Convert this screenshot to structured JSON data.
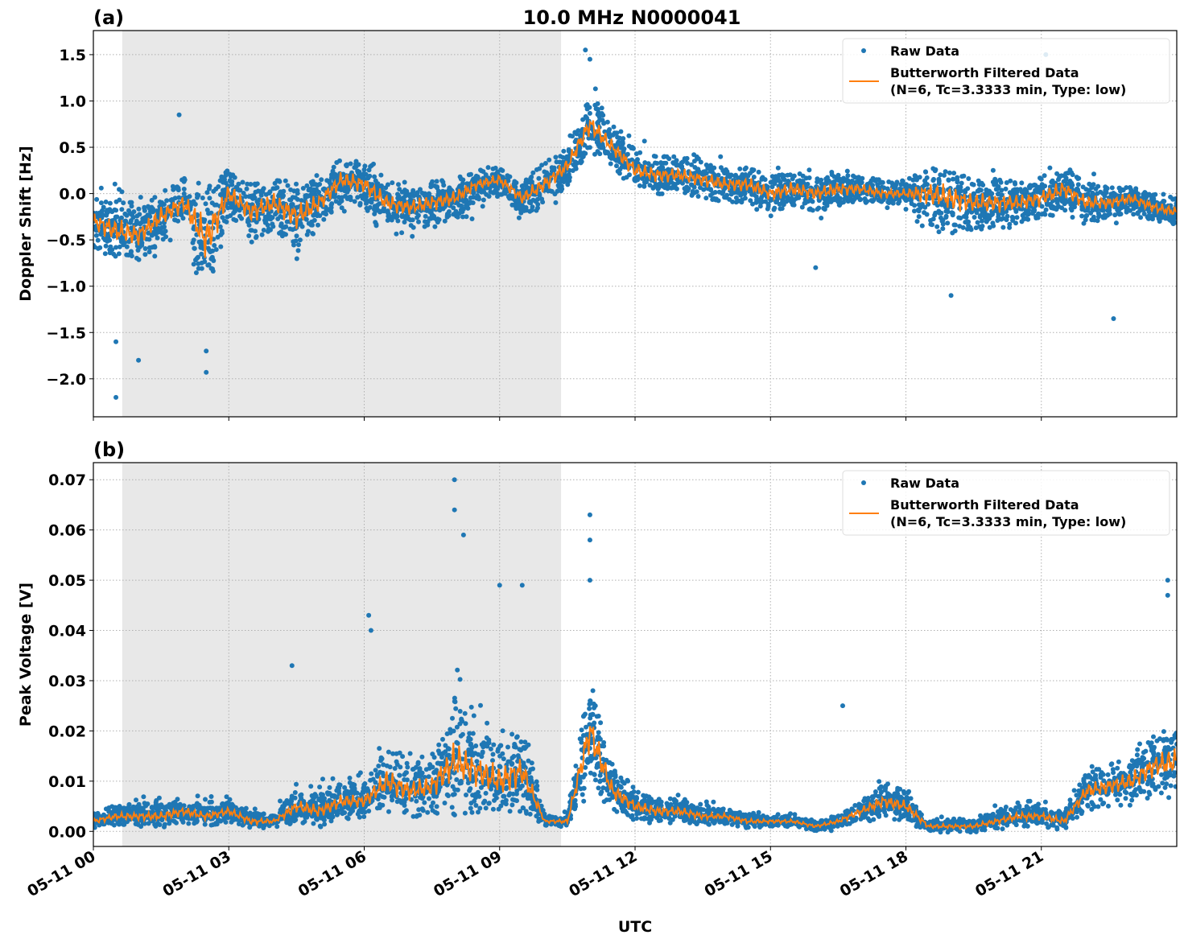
{
  "title": "10.0 MHz N0000041",
  "xlabel": "UTC",
  "colors": {
    "raw": "#1f77b4",
    "filtered": "#ff7f0e",
    "shade": "#e8e8e8",
    "grid": "#b0b0b0"
  },
  "chart_data": [
    {
      "panel_label": "(a)",
      "type": "scatter+line",
      "ylabel": "Doppler Shift [Hz]",
      "xlim_hours_utc": [
        0,
        24
      ],
      "x_tick_labels": [
        "05-11 00",
        "05-11 03",
        "05-11 06",
        "05-11 09",
        "05-11 12",
        "05-11 15",
        "05-11 18",
        "05-11 21"
      ],
      "x_tick_hours": [
        0,
        3,
        6,
        9,
        12,
        15,
        18,
        21
      ],
      "ylim": [
        -2.41,
        1.76
      ],
      "y_ticks": [
        -2.0,
        -1.5,
        -1.0,
        -0.5,
        0.0,
        0.5,
        1.0,
        1.5
      ],
      "y_tick_labels": [
        "−2.0",
        "−1.5",
        "−1.0",
        "−0.5",
        "0.0",
        "0.5",
        "1.0",
        "1.5"
      ],
      "grid": true,
      "shaded_interval_hours": [
        0.64,
        10.36
      ],
      "legend_position": "top-right",
      "legend": [
        "Raw Data",
        "Butterworth Filtered Data",
        "(N=6, Tc=3.3333 min, Type: low)"
      ],
      "x_hours": [
        0,
        0.5,
        1,
        1.5,
        2,
        2.5,
        3,
        3.5,
        4,
        4.5,
        5,
        5.5,
        6,
        6.5,
        7,
        7.5,
        8,
        8.5,
        9,
        9.5,
        10,
        10.5,
        11,
        11.5,
        12,
        12.5,
        13,
        13.5,
        14,
        14.5,
        15,
        15.5,
        16,
        16.5,
        17,
        17.5,
        18,
        18.5,
        19,
        19.5,
        20,
        20.5,
        21,
        21.5,
        22,
        22.5,
        23,
        23.5,
        24
      ],
      "filtered": [
        -0.3,
        -0.4,
        -0.45,
        -0.25,
        -0.1,
        -0.5,
        0.0,
        -0.2,
        -0.1,
        -0.25,
        -0.1,
        0.15,
        0.1,
        -0.1,
        -0.15,
        -0.1,
        -0.05,
        0.1,
        0.15,
        -0.05,
        0.1,
        0.3,
        0.75,
        0.5,
        0.25,
        0.2,
        0.2,
        0.15,
        0.1,
        0.1,
        0.0,
        0.05,
        0.0,
        0.05,
        0.05,
        0.0,
        0.0,
        0.0,
        -0.05,
        -0.1,
        -0.1,
        -0.1,
        -0.05,
        0.05,
        -0.1,
        -0.1,
        -0.05,
        -0.15,
        -0.2
      ],
      "raw_low": [
        -0.7,
        -0.8,
        -0.9,
        -0.7,
        -0.6,
        -1.6,
        -0.5,
        -0.8,
        -0.7,
        -0.9,
        -0.6,
        -0.3,
        -0.3,
        -0.6,
        -0.6,
        -0.5,
        -0.5,
        -0.3,
        -0.2,
        -0.4,
        -0.3,
        -0.1,
        0.3,
        0.2,
        -0.05,
        -0.1,
        -0.1,
        -0.2,
        -0.2,
        -0.3,
        -0.3,
        -0.3,
        -0.35,
        -0.3,
        -0.2,
        -0.2,
        -0.25,
        -0.6,
        -0.7,
        -0.6,
        -0.6,
        -0.5,
        -0.5,
        -0.4,
        -0.4,
        -0.4,
        -0.4,
        -0.45,
        -0.5
      ],
      "raw_high": [
        0.2,
        0.3,
        0.1,
        0.2,
        0.3,
        0.5,
        0.4,
        0.2,
        0.25,
        0.3,
        0.3,
        0.5,
        0.55,
        0.2,
        0.15,
        0.25,
        0.2,
        0.25,
        0.3,
        0.2,
        0.5,
        0.6,
        1.3,
        0.9,
        0.7,
        0.6,
        0.55,
        0.5,
        0.45,
        0.4,
        0.35,
        0.4,
        0.3,
        0.35,
        0.3,
        0.25,
        0.2,
        0.5,
        0.55,
        0.3,
        0.3,
        0.25,
        0.3,
        0.4,
        0.3,
        0.2,
        0.1,
        0.05,
        0.0
      ],
      "raw_outliers": [
        [
          0.5,
          -2.2
        ],
        [
          0.5,
          -1.6
        ],
        [
          1.0,
          -1.8
        ],
        [
          2.5,
          -1.93
        ],
        [
          2.5,
          -1.7
        ],
        [
          1.9,
          0.85
        ],
        [
          10.9,
          1.55
        ],
        [
          11.0,
          1.45
        ],
        [
          21.1,
          1.5
        ],
        [
          22.6,
          -1.35
        ],
        [
          19.0,
          -1.1
        ],
        [
          16.0,
          -0.8
        ]
      ]
    },
    {
      "panel_label": "(b)",
      "type": "scatter+line",
      "ylabel": "Peak Voltage [V]",
      "xlim_hours_utc": [
        0,
        24
      ],
      "x_tick_labels": [
        "05-11 00",
        "05-11 03",
        "05-11 06",
        "05-11 09",
        "05-11 12",
        "05-11 15",
        "05-11 18",
        "05-11 21"
      ],
      "x_tick_hours": [
        0,
        3,
        6,
        9,
        12,
        15,
        18,
        21
      ],
      "ylim": [
        -0.003,
        0.0734
      ],
      "y_ticks": [
        0.0,
        0.01,
        0.02,
        0.03,
        0.04,
        0.05,
        0.06,
        0.07
      ],
      "y_tick_labels": [
        "0.00",
        "0.01",
        "0.02",
        "0.03",
        "0.04",
        "0.05",
        "0.06",
        "0.07"
      ],
      "grid": true,
      "shaded_interval_hours": [
        0.64,
        10.36
      ],
      "legend_position": "top-right",
      "legend": [
        "Raw Data",
        "Butterworth Filtered Data",
        "(N=6, Tc=3.3333 min, Type: low)"
      ],
      "x_hours": [
        0,
        0.5,
        1,
        1.5,
        2,
        2.5,
        3,
        3.5,
        4,
        4.5,
        5,
        5.5,
        6,
        6.5,
        7,
        7.5,
        8,
        8.5,
        9,
        9.5,
        10,
        10.5,
        11,
        11.5,
        12,
        12.5,
        13,
        13.5,
        14,
        14.5,
        15,
        15.5,
        16,
        16.5,
        17,
        17.5,
        18,
        18.5,
        19,
        19.5,
        20,
        20.5,
        21,
        21.5,
        22,
        22.5,
        23,
        23.5,
        24
      ],
      "filtered": [
        0.002,
        0.003,
        0.003,
        0.003,
        0.004,
        0.003,
        0.004,
        0.002,
        0.002,
        0.005,
        0.004,
        0.006,
        0.006,
        0.01,
        0.008,
        0.009,
        0.014,
        0.012,
        0.01,
        0.012,
        0.002,
        0.002,
        0.02,
        0.008,
        0.005,
        0.004,
        0.004,
        0.003,
        0.003,
        0.002,
        0.002,
        0.002,
        0.001,
        0.002,
        0.004,
        0.006,
        0.005,
        0.001,
        0.001,
        0.001,
        0.002,
        0.003,
        0.003,
        0.002,
        0.008,
        0.009,
        0.01,
        0.013,
        0.014
      ],
      "raw_low": [
        0.0005,
        0.001,
        0.001,
        0.001,
        0.001,
        0.001,
        0.001,
        0.001,
        0.001,
        0.001,
        0.001,
        0.002,
        0.002,
        0.003,
        0.002,
        0.003,
        0.004,
        0.003,
        0.003,
        0.003,
        0.001,
        0.001,
        0.005,
        0.003,
        0.002,
        0.001,
        0.001,
        0.001,
        0.001,
        0.0005,
        0.0005,
        0.0005,
        0.0,
        0.0,
        0.001,
        0.001,
        0.001,
        0.0,
        0.0,
        0.0,
        0.0005,
        0.001,
        0.001,
        0.0,
        0.003,
        0.004,
        0.004,
        0.005,
        0.005
      ],
      "raw_high": [
        0.005,
        0.007,
        0.008,
        0.009,
        0.009,
        0.008,
        0.008,
        0.007,
        0.005,
        0.012,
        0.012,
        0.014,
        0.013,
        0.025,
        0.02,
        0.022,
        0.04,
        0.03,
        0.03,
        0.03,
        0.004,
        0.005,
        0.04,
        0.018,
        0.012,
        0.01,
        0.009,
        0.007,
        0.006,
        0.005,
        0.004,
        0.004,
        0.003,
        0.004,
        0.008,
        0.012,
        0.011,
        0.004,
        0.004,
        0.004,
        0.006,
        0.008,
        0.008,
        0.006,
        0.016,
        0.018,
        0.02,
        0.025,
        0.03
      ],
      "raw_outliers": [
        [
          4.4,
          0.033
        ],
        [
          6.1,
          0.043
        ],
        [
          6.15,
          0.04
        ],
        [
          8.0,
          0.07
        ],
        [
          8.0,
          0.064
        ],
        [
          8.2,
          0.059
        ],
        [
          9.0,
          0.049
        ],
        [
          9.5,
          0.049
        ],
        [
          11.0,
          0.063
        ],
        [
          11.0,
          0.058
        ],
        [
          11.0,
          0.05
        ],
        [
          16.6,
          0.025
        ],
        [
          23.8,
          0.05
        ],
        [
          23.8,
          0.047
        ]
      ]
    }
  ]
}
